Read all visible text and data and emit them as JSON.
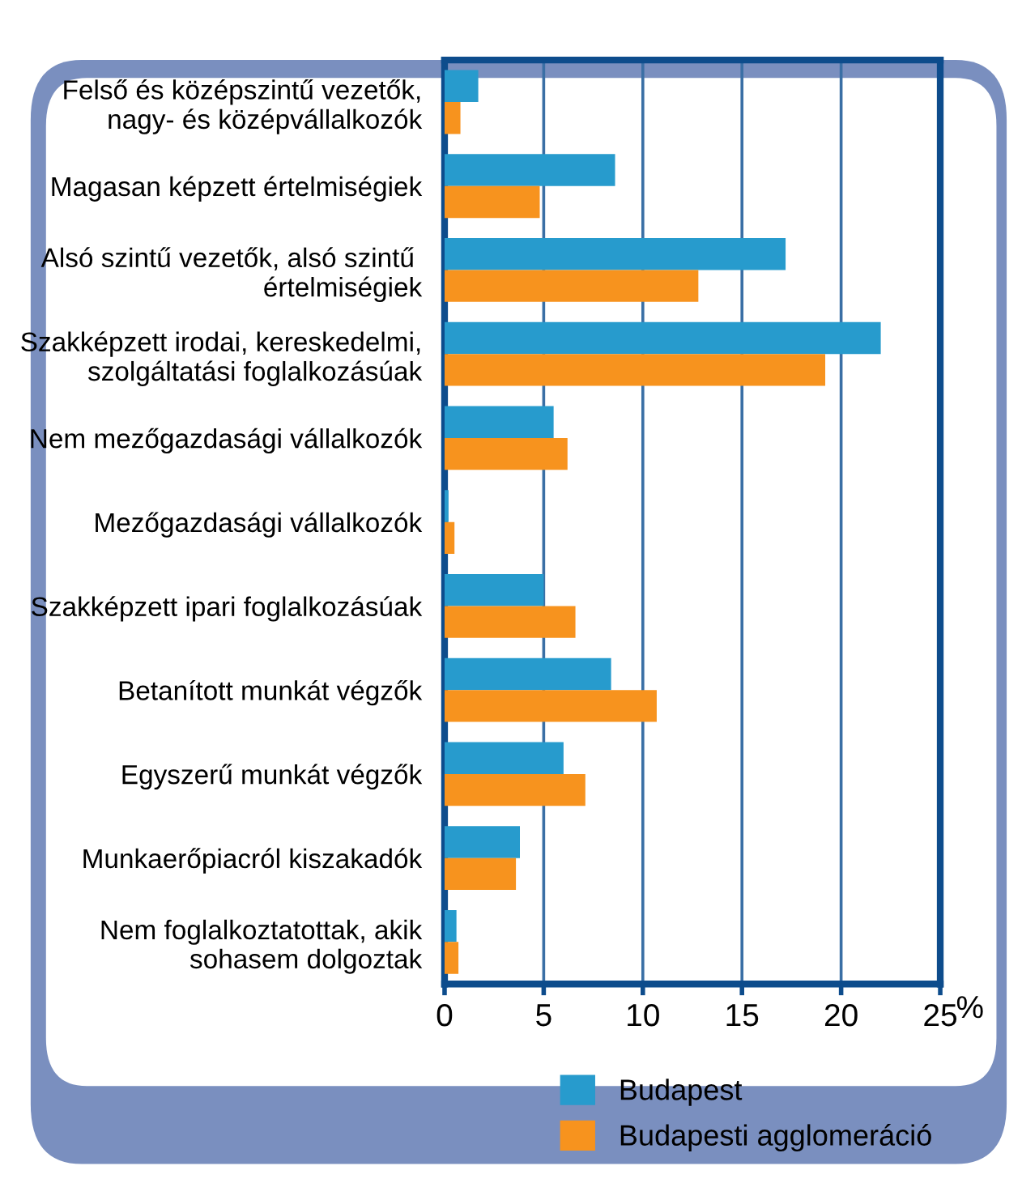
{
  "chart_data": {
    "type": "bar",
    "orientation": "horizontal",
    "categories": [
      "Felső és középszintű vezetők,\nnagy- és középvállalkozók",
      "Magasan képzett értelmiségiek",
      "Alsó szintű vezetők, alsó szintű \nértelmiségiek",
      "Szakképzett irodai, kereskedelmi,\nszolgáltatási foglalkozásúak",
      "Nem mezőgazdasági vállalkozók",
      "Mezőgazdasági vállalkozók",
      "Szakképzett ipari foglalkozásúak",
      "Betanított munkát végzők",
      "Egyszerű munkát végzők",
      "Munkaerőpiacról kiszakadók",
      "Nem foglalkoztatottak, akik\nsohasem dolgoztak"
    ],
    "series": [
      {
        "name": "Budapest",
        "color": "#279bcd",
        "values": [
          1.7,
          8.6,
          17.2,
          22.0,
          5.5,
          0.2,
          5.0,
          8.4,
          6.0,
          3.8,
          0.6
        ]
      },
      {
        "name": "Budapesti agglomeráció",
        "color": "#f7931e",
        "values": [
          0.8,
          4.8,
          12.8,
          19.2,
          6.2,
          0.5,
          6.6,
          10.7,
          7.1,
          3.6,
          0.7
        ]
      }
    ],
    "xlabel": "%",
    "xlim": [
      0,
      25
    ],
    "xticks": [
      0,
      5,
      10,
      15,
      20,
      25
    ],
    "grid": "x",
    "legend": "bottom"
  }
}
